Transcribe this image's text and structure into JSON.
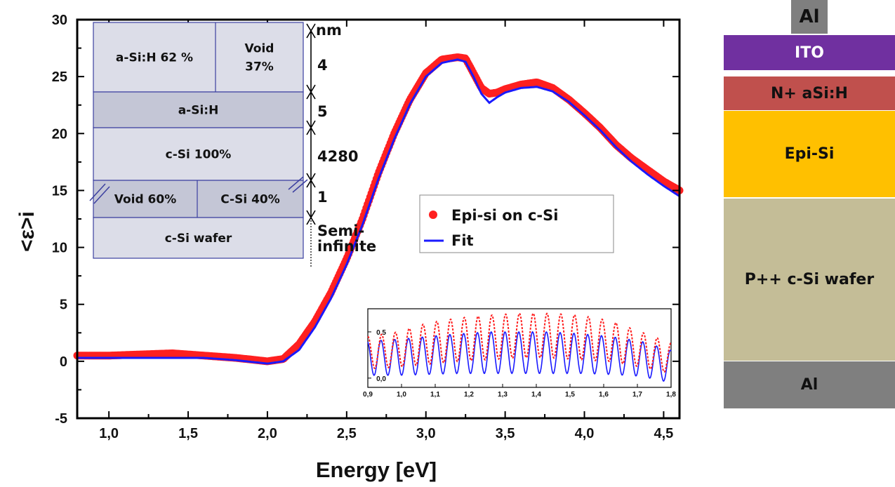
{
  "chart_data": {
    "type": "scatter",
    "xlabel": "Energy [eV]",
    "ylabel": "<ε>i",
    "xlim": [
      0.8,
      4.6
    ],
    "ylim": [
      -5,
      30
    ],
    "x_ticks": [
      "1,0",
      "1,5",
      "2,0",
      "2,5",
      "3,0",
      "3,5",
      "4,0",
      "4,5"
    ],
    "y_ticks": [
      "-5",
      "0",
      "5",
      "10",
      "15",
      "20",
      "25",
      "30"
    ],
    "legend_position": "center-right",
    "series": [
      {
        "name": "Epi-si on c-Si",
        "style": "markers",
        "color": "#ff2020",
        "x": [
          0.8,
          1.0,
          1.2,
          1.4,
          1.6,
          1.8,
          2.0,
          2.1,
          2.2,
          2.3,
          2.4,
          2.5,
          2.6,
          2.7,
          2.8,
          2.9,
          3.0,
          3.1,
          3.2,
          3.25,
          3.3,
          3.35,
          3.4,
          3.45,
          3.5,
          3.6,
          3.7,
          3.8,
          3.9,
          4.0,
          4.1,
          4.2,
          4.3,
          4.4,
          4.5,
          4.6
        ],
        "y": [
          0.5,
          0.5,
          0.6,
          0.7,
          0.5,
          0.3,
          0.0,
          0.2,
          1.5,
          3.5,
          6.0,
          9.0,
          12.5,
          16.5,
          20.0,
          23.0,
          25.3,
          26.5,
          26.7,
          26.6,
          25.3,
          24.0,
          23.5,
          23.6,
          23.9,
          24.3,
          24.5,
          24.0,
          23.0,
          21.8,
          20.5,
          19.0,
          17.8,
          16.8,
          15.8,
          15.0
        ]
      },
      {
        "name": "Fit",
        "style": "line",
        "color": "#1a1aff",
        "x": [
          0.8,
          1.0,
          1.2,
          1.4,
          1.6,
          1.8,
          2.0,
          2.1,
          2.2,
          2.3,
          2.4,
          2.5,
          2.6,
          2.7,
          2.8,
          2.9,
          3.0,
          3.1,
          3.2,
          3.25,
          3.3,
          3.35,
          3.4,
          3.45,
          3.5,
          3.6,
          3.7,
          3.8,
          3.9,
          4.0,
          4.1,
          4.2,
          4.3,
          4.4,
          4.5,
          4.6
        ],
        "y": [
          0.3,
          0.3,
          0.3,
          0.3,
          0.3,
          0.1,
          -0.2,
          0.0,
          1.0,
          3.0,
          5.5,
          8.5,
          12.0,
          16.0,
          19.5,
          22.6,
          25.0,
          26.2,
          26.5,
          26.3,
          25.0,
          23.5,
          22.7,
          23.2,
          23.6,
          24.0,
          24.1,
          23.7,
          22.8,
          21.6,
          20.3,
          18.8,
          17.5,
          16.4,
          15.4,
          14.5
        ]
      }
    ],
    "inset": {
      "type": "line",
      "xlim": [
        0.9,
        1.8
      ],
      "ylim": [
        -0.1,
        0.75
      ],
      "x_ticks": [
        "0,9",
        "1,0",
        "1,1",
        "1,2",
        "1,3",
        "1,4",
        "1,5",
        "1,6",
        "1,7",
        "1,8"
      ],
      "y_ticks": [
        "0,0",
        "0,5"
      ],
      "oscillations": 22,
      "measured_max": [
        0.45,
        0.5,
        0.6,
        0.65,
        0.68,
        0.7,
        0.7,
        0.68,
        0.62,
        0.5,
        0.38
      ],
      "measured_min": [
        0.1,
        0.12,
        0.15,
        0.18,
        0.2,
        0.22,
        0.22,
        0.2,
        0.18,
        0.12,
        0.05
      ],
      "fit_max": [
        0.4,
        0.42,
        0.45,
        0.48,
        0.5,
        0.5,
        0.5,
        0.48,
        0.45,
        0.4,
        0.3
      ],
      "fit_min": [
        0.03,
        0.03,
        0.04,
        0.05,
        0.05,
        0.05,
        0.05,
        0.05,
        0.04,
        0.02,
        -0.05
      ]
    },
    "layer_model": {
      "unit": "nm",
      "layers": [
        {
          "cells": [
            "a-Si:H 62 %",
            "Void\n37%"
          ],
          "thickness": "4",
          "fill": "#dcdde8"
        },
        {
          "cells": [
            "a-Si:H"
          ],
          "thickness": "5",
          "fill": "#c4c6d6"
        },
        {
          "cells": [
            "c-Si 100%"
          ],
          "thickness": "4280",
          "fill": "#dcdde8"
        },
        {
          "cells": [
            "Void 60%",
            "C-Si 40%"
          ],
          "thickness": "1",
          "fill": "#c4c6d6"
        },
        {
          "cells": [
            "c-Si wafer"
          ],
          "thickness": "Semi-\ninfinite",
          "fill": "#dcdde8"
        }
      ]
    }
  },
  "device_stack": {
    "top_contact": {
      "label": "Al",
      "color": "#7f7f7f"
    },
    "layers": [
      {
        "label": "ITO",
        "color": "#7030a0",
        "text_color": "#ffffff"
      },
      {
        "label": "N+ aSi:H",
        "color": "#c0504d",
        "text_color": "#111111"
      },
      {
        "label": "Epi-Si",
        "color": "#ffc000",
        "text_color": "#111111"
      },
      {
        "label": "P++ c-Si wafer",
        "color": "#c4bd97",
        "text_color": "#111111"
      },
      {
        "label": "Al",
        "color": "#7f7f7f",
        "text_color": "#111111"
      }
    ]
  }
}
